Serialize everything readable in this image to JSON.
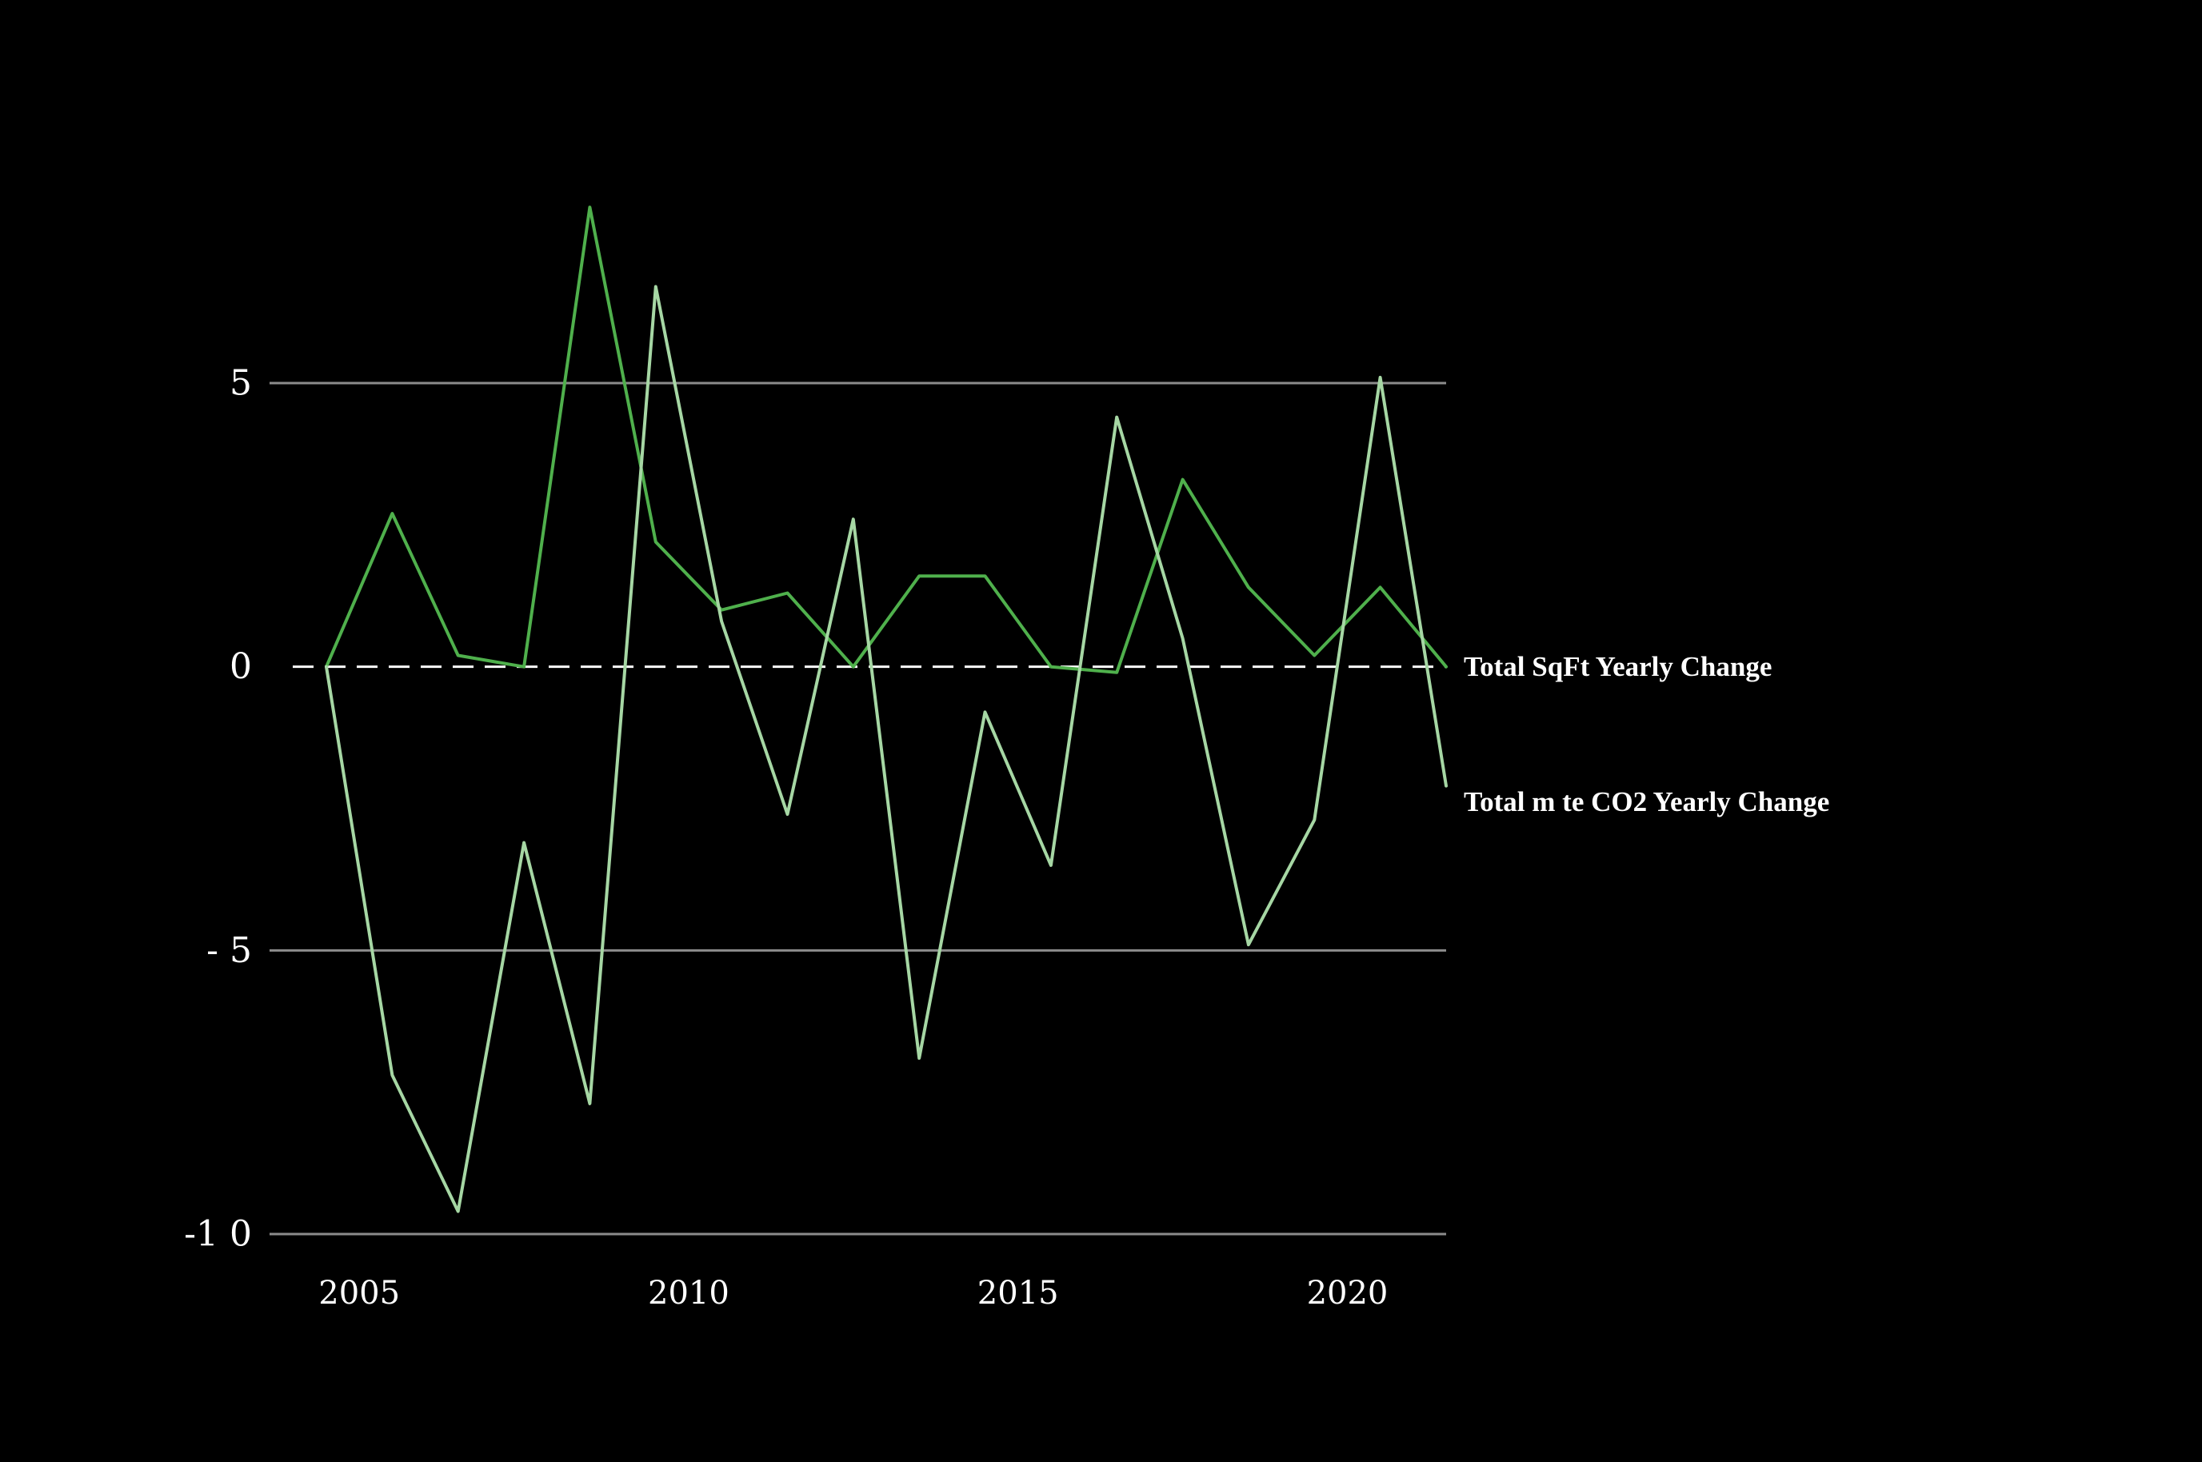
{
  "chart_data": {
    "type": "line",
    "title": "",
    "xlabel": "",
    "ylabel": "",
    "xlim": [
      2004.5,
      2021.5
    ],
    "ylim": [
      -10,
      8.2
    ],
    "x_ticks": [
      2005,
      2010,
      2015,
      2020
    ],
    "x_tick_labels": [
      "2005",
      "2010",
      "2015",
      "2020"
    ],
    "y_ticks": [
      5,
      0,
      -5,
      -10
    ],
    "y_tick_labels": [
      "5",
      "0",
      "- 5",
      "-1 0"
    ],
    "grid": "horizontal",
    "zero_line_style": "dashed",
    "x": [
      2004.5,
      2005.5,
      2006.5,
      2007.5,
      2008.5,
      2009.5,
      2010.5,
      2011.5,
      2012.5,
      2013.5,
      2014.5,
      2015.5,
      2016.5,
      2017.5,
      2018.5,
      2019.5,
      2020.5,
      2021.5
    ],
    "series": [
      {
        "name": "Total SqFt Yearly Change",
        "color": "#4fb04c",
        "values": [
          0,
          2.7,
          0.2,
          0,
          8.1,
          2.2,
          1.0,
          1.3,
          0,
          1.6,
          1.6,
          0,
          -0.1,
          3.3,
          1.4,
          0.2,
          1.4,
          0
        ]
      },
      {
        "name": "Total m te CO2 Yearly Change",
        "color": "#a6d7a4",
        "values": [
          0,
          -7.2,
          -9.6,
          -3.1,
          -7.7,
          6.7,
          0.8,
          -2.6,
          2.6,
          -6.9,
          -0.8,
          -3.5,
          4.4,
          0.5,
          -4.9,
          -2.7,
          5.1,
          -2.1
        ]
      }
    ],
    "colors": {
      "background": "#000000",
      "gridline": "#8c8c8c",
      "zero_line": "#ffffff",
      "text": "#ffffff"
    }
  }
}
